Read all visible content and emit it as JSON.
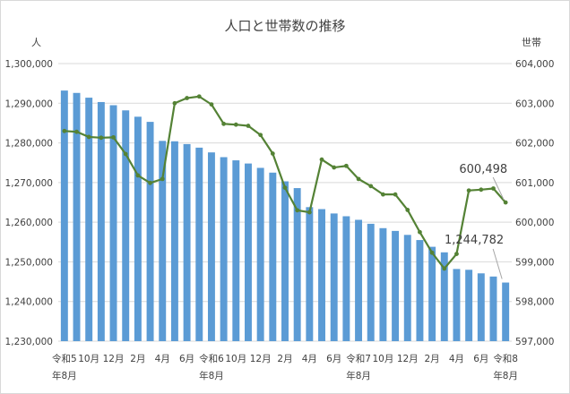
{
  "chart_data": {
    "type": "bar+line",
    "title": "人口と世帯数の推移",
    "ylabel_left": "人",
    "ylabel_right": "世帯",
    "ylim_left": [
      1230000,
      1300000
    ],
    "ylim_right": [
      597000,
      604000
    ],
    "yticks_left": [
      "1,230,000",
      "1,240,000",
      "1,250,000",
      "1,260,000",
      "1,270,000",
      "1,280,000",
      "1,290,000",
      "1,300,000"
    ],
    "yticks_right": [
      "597,000",
      "598,000",
      "599,000",
      "600,000",
      "601,000",
      "602,000",
      "603,000",
      "604,000"
    ],
    "x_labels": [
      [
        "令和5",
        "年8月"
      ],
      [
        "10月",
        ""
      ],
      [
        "12月",
        ""
      ],
      [
        "2月",
        ""
      ],
      [
        "4月",
        ""
      ],
      [
        "6月",
        ""
      ],
      [
        "令和6",
        "年8月"
      ],
      [
        "10月",
        ""
      ],
      [
        "12月",
        ""
      ],
      [
        "2月",
        ""
      ],
      [
        "4月",
        ""
      ],
      [
        "6月",
        ""
      ],
      [
        "令和7",
        "年8月"
      ],
      [
        "10月",
        ""
      ],
      [
        "12月",
        ""
      ],
      [
        "2月",
        ""
      ],
      [
        "4月",
        ""
      ],
      [
        "6月",
        ""
      ],
      [
        "令和8",
        "年8月"
      ]
    ],
    "series": [
      {
        "kind": "bar",
        "color": "#5b9bd5",
        "values": [
          1293200,
          1292600,
          1291400,
          1290300,
          1289500,
          1288200,
          1286600,
          1285300,
          1280500,
          1280400,
          1279700,
          1278800,
          1277600,
          1276400,
          1275600,
          1274800,
          1273700,
          1272500,
          1270300,
          1268600,
          1263800,
          1263300,
          1262200,
          1261500,
          1260600,
          1259600,
          1258500,
          1257800,
          1256800,
          1255500,
          1253800,
          1252400,
          1248200,
          1248000,
          1247100,
          1246300,
          1244782
        ]
      },
      {
        "kind": "line",
        "color": "#548235",
        "values": [
          602300,
          602280,
          602150,
          602130,
          602140,
          601720,
          601180,
          600990,
          601090,
          603000,
          603130,
          603170,
          602970,
          602480,
          602460,
          602430,
          602200,
          601730,
          600870,
          600300,
          600250,
          601580,
          601380,
          601420,
          601090,
          600910,
          600700,
          600700,
          600310,
          599750,
          599230,
          598830,
          599200,
          600800,
          600820,
          600850,
          600498
        ]
      }
    ],
    "annotations": [
      "1,244,782",
      "600,498"
    ]
  }
}
